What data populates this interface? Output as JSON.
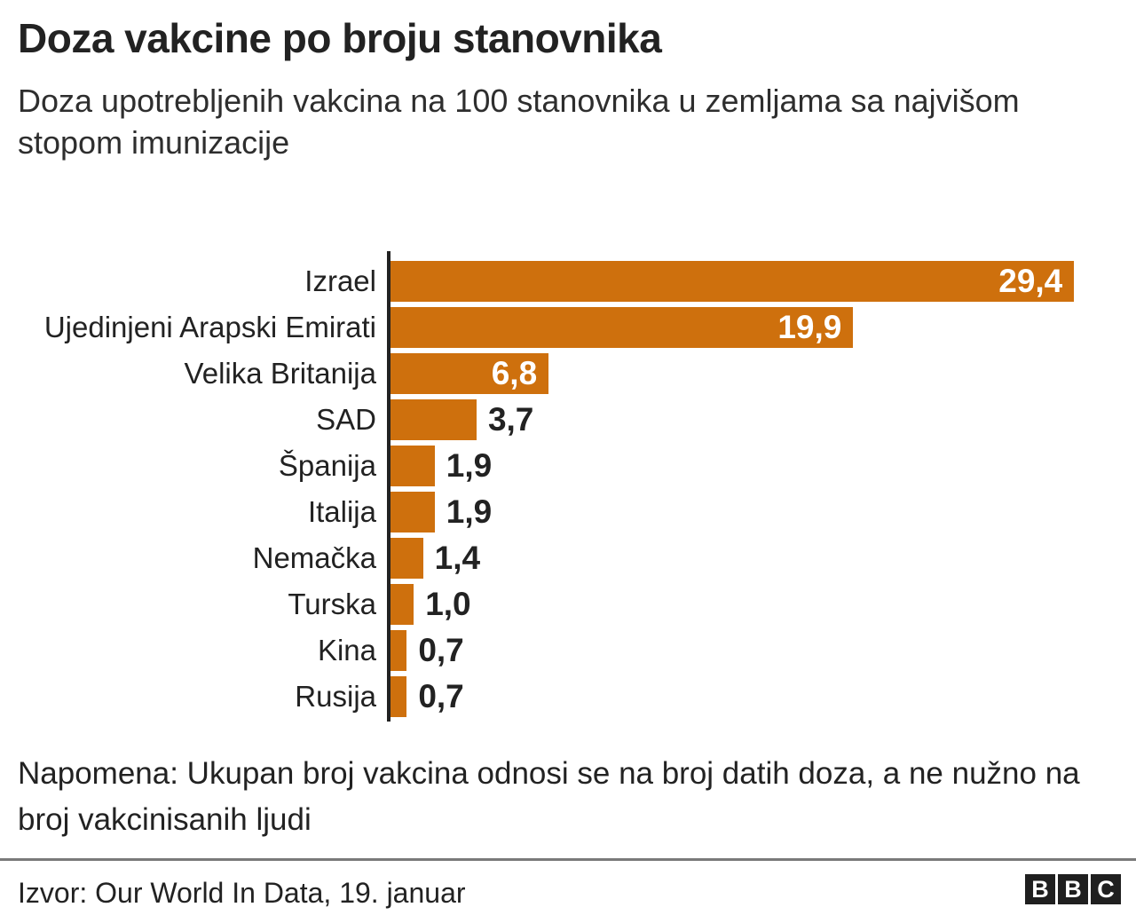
{
  "title": "Doza vakcine po broju stanovnika",
  "subtitle": "Doza upotrebljenih vakcina na 100 stanovnika u zemljama sa najvišom stopom imunizacije",
  "note": "Napomena: Ukupan broj vakcina odnosi se na broj datih doza, a ne nužno na broj vakcinisanih ljudi",
  "source": "Izvor: Our World In Data, 19. januar",
  "logo": {
    "letters": [
      "B",
      "B",
      "C"
    ]
  },
  "colors": {
    "bar": "#CE700D",
    "axis": "#222222",
    "text_dark": "#222222",
    "value_inside": "#FFFFFF",
    "divider": "#7A7A7A",
    "background": "#FFFFFF"
  },
  "chart_data": {
    "type": "bar",
    "orientation": "horizontal",
    "title": "Doza vakcine po broju stanovnika",
    "subtitle": "Doza upotrebljenih vakcina na 100 stanovnika u zemljama sa najvišom stopom imunizacije",
    "categories": [
      "Izrael",
      "Ujedinjeni Arapski Emirati",
      "Velika Britanija",
      "SAD",
      "Španija",
      "Italija",
      "Nemačka",
      "Turska",
      "Kina",
      "Rusija"
    ],
    "values": [
      29.4,
      19.9,
      6.8,
      3.7,
      1.9,
      1.9,
      1.4,
      1.0,
      0.7,
      0.7
    ],
    "value_labels": [
      "29,4",
      "19,9",
      "6,8",
      "3,7",
      "1,9",
      "1,9",
      "1,4",
      "1,0",
      "0,7",
      "0,7"
    ],
    "xlim": [
      0,
      29.4
    ],
    "grid": false,
    "legend": false,
    "xlabel": "",
    "ylabel": ""
  }
}
